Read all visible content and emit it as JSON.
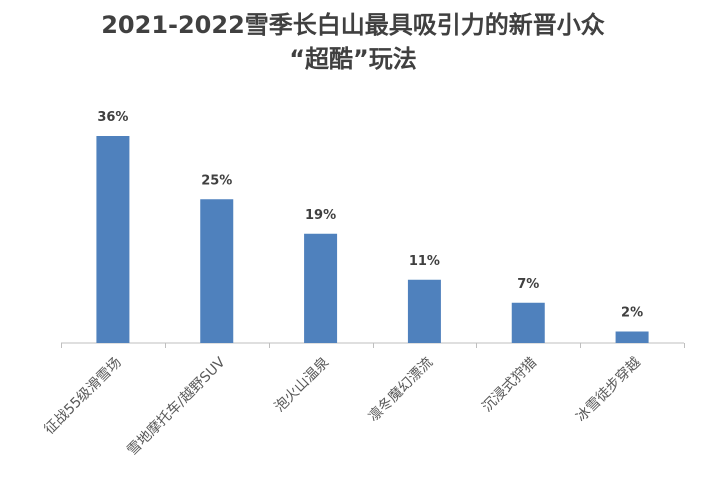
{
  "chart_data": {
    "type": "bar",
    "title_lines": [
      "2021-2022雪季长白山最具吸引力的新晋小众",
      "“超酷”玩法"
    ],
    "categories": [
      "征战55级滑雪场",
      "雪地摩托车/越野SUV",
      "泡火山温泉",
      "凛冬魔幻漂流",
      "沉浸式狩猎",
      "冰雪徒步穿越"
    ],
    "values": [
      36,
      25,
      19,
      11,
      7,
      2
    ],
    "value_labels": [
      "36%",
      "25%",
      "19%",
      "11%",
      "7%",
      "2%"
    ],
    "ylim": [
      0,
      40
    ],
    "grid": false,
    "legend": "none",
    "colors": {
      "bar": "#4F81BD",
      "axis": "#BFBFBF",
      "text": "#404040"
    }
  }
}
